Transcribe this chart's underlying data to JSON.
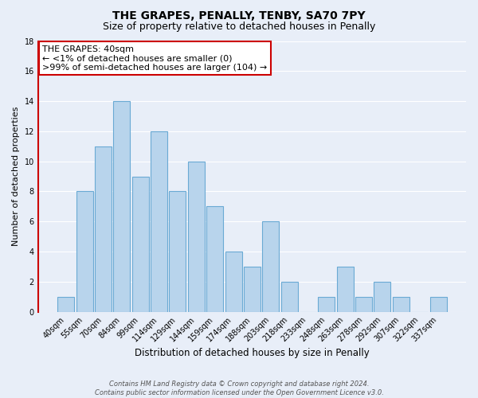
{
  "title": "THE GRAPES, PENALLY, TENBY, SA70 7PY",
  "subtitle": "Size of property relative to detached houses in Penally",
  "xlabel": "Distribution of detached houses by size in Penally",
  "ylabel": "Number of detached properties",
  "bar_labels": [
    "40sqm",
    "55sqm",
    "70sqm",
    "84sqm",
    "99sqm",
    "114sqm",
    "129sqm",
    "144sqm",
    "159sqm",
    "174sqm",
    "188sqm",
    "203sqm",
    "218sqm",
    "233sqm",
    "248sqm",
    "263sqm",
    "278sqm",
    "292sqm",
    "307sqm",
    "322sqm",
    "337sqm"
  ],
  "bar_values": [
    1,
    8,
    11,
    14,
    9,
    12,
    8,
    10,
    7,
    4,
    3,
    6,
    2,
    0,
    1,
    3,
    1,
    2,
    1,
    0,
    1
  ],
  "bar_color": "#b8d4ec",
  "bar_edge_color": "#6aaad4",
  "annotation_line1": "THE GRAPES: 40sqm",
  "annotation_line2": "← <1% of detached houses are smaller (0)",
  "annotation_line3": ">99% of semi-detached houses are larger (104) →",
  "annotation_box_edge_color": "#cc0000",
  "annotation_box_face_color": "#ffffff",
  "ylim": [
    0,
    18
  ],
  "yticks": [
    0,
    2,
    4,
    6,
    8,
    10,
    12,
    14,
    16,
    18
  ],
  "background_color": "#e8eef8",
  "grid_color": "#ffffff",
  "footer_line1": "Contains HM Land Registry data © Crown copyright and database right 2024.",
  "footer_line2": "Contains public sector information licensed under the Open Government Licence v3.0.",
  "title_fontsize": 10,
  "subtitle_fontsize": 9,
  "xlabel_fontsize": 8.5,
  "ylabel_fontsize": 8,
  "tick_fontsize": 7,
  "footer_fontsize": 6,
  "annotation_fontsize": 8
}
